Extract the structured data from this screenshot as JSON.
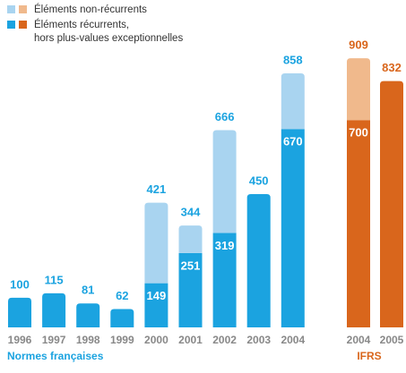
{
  "chart_data": [
    {
      "type": "bar",
      "stacked": true,
      "group_label": "Normes françaises",
      "categories": [
        "1996",
        "1997",
        "1998",
        "1999",
        "2000",
        "2001",
        "2002",
        "2003",
        "2004"
      ],
      "totals": [
        100,
        115,
        81,
        62,
        421,
        344,
        666,
        450,
        858
      ],
      "series": [
        {
          "name": "Éléments récurrents,\nhors plus-values exceptionnelles",
          "color": "#1ba3e0",
          "values": [
            100,
            115,
            81,
            62,
            149,
            251,
            319,
            450,
            670
          ],
          "value_labels": [
            null,
            null,
            null,
            null,
            "149",
            "251",
            "319",
            null,
            "670"
          ]
        },
        {
          "name": "Éléments non-récurrents",
          "color": "#a9d4f0",
          "values": [
            0,
            0,
            0,
            0,
            272,
            93,
            347,
            0,
            188
          ]
        }
      ],
      "label_color": "#1ba3e0",
      "ylim": [
        0,
        1000
      ]
    },
    {
      "type": "bar",
      "stacked": true,
      "group_label": "IFRS",
      "categories": [
        "2004",
        "2005"
      ],
      "totals": [
        909,
        832
      ],
      "series": [
        {
          "color": "#d9661c",
          "values": [
            700,
            832
          ],
          "value_labels": [
            "700",
            null
          ]
        },
        {
          "color": "#f0b98c",
          "values": [
            209,
            0
          ]
        }
      ],
      "label_color": "#d9661c",
      "ylim": [
        0,
        1000
      ]
    }
  ]
}
